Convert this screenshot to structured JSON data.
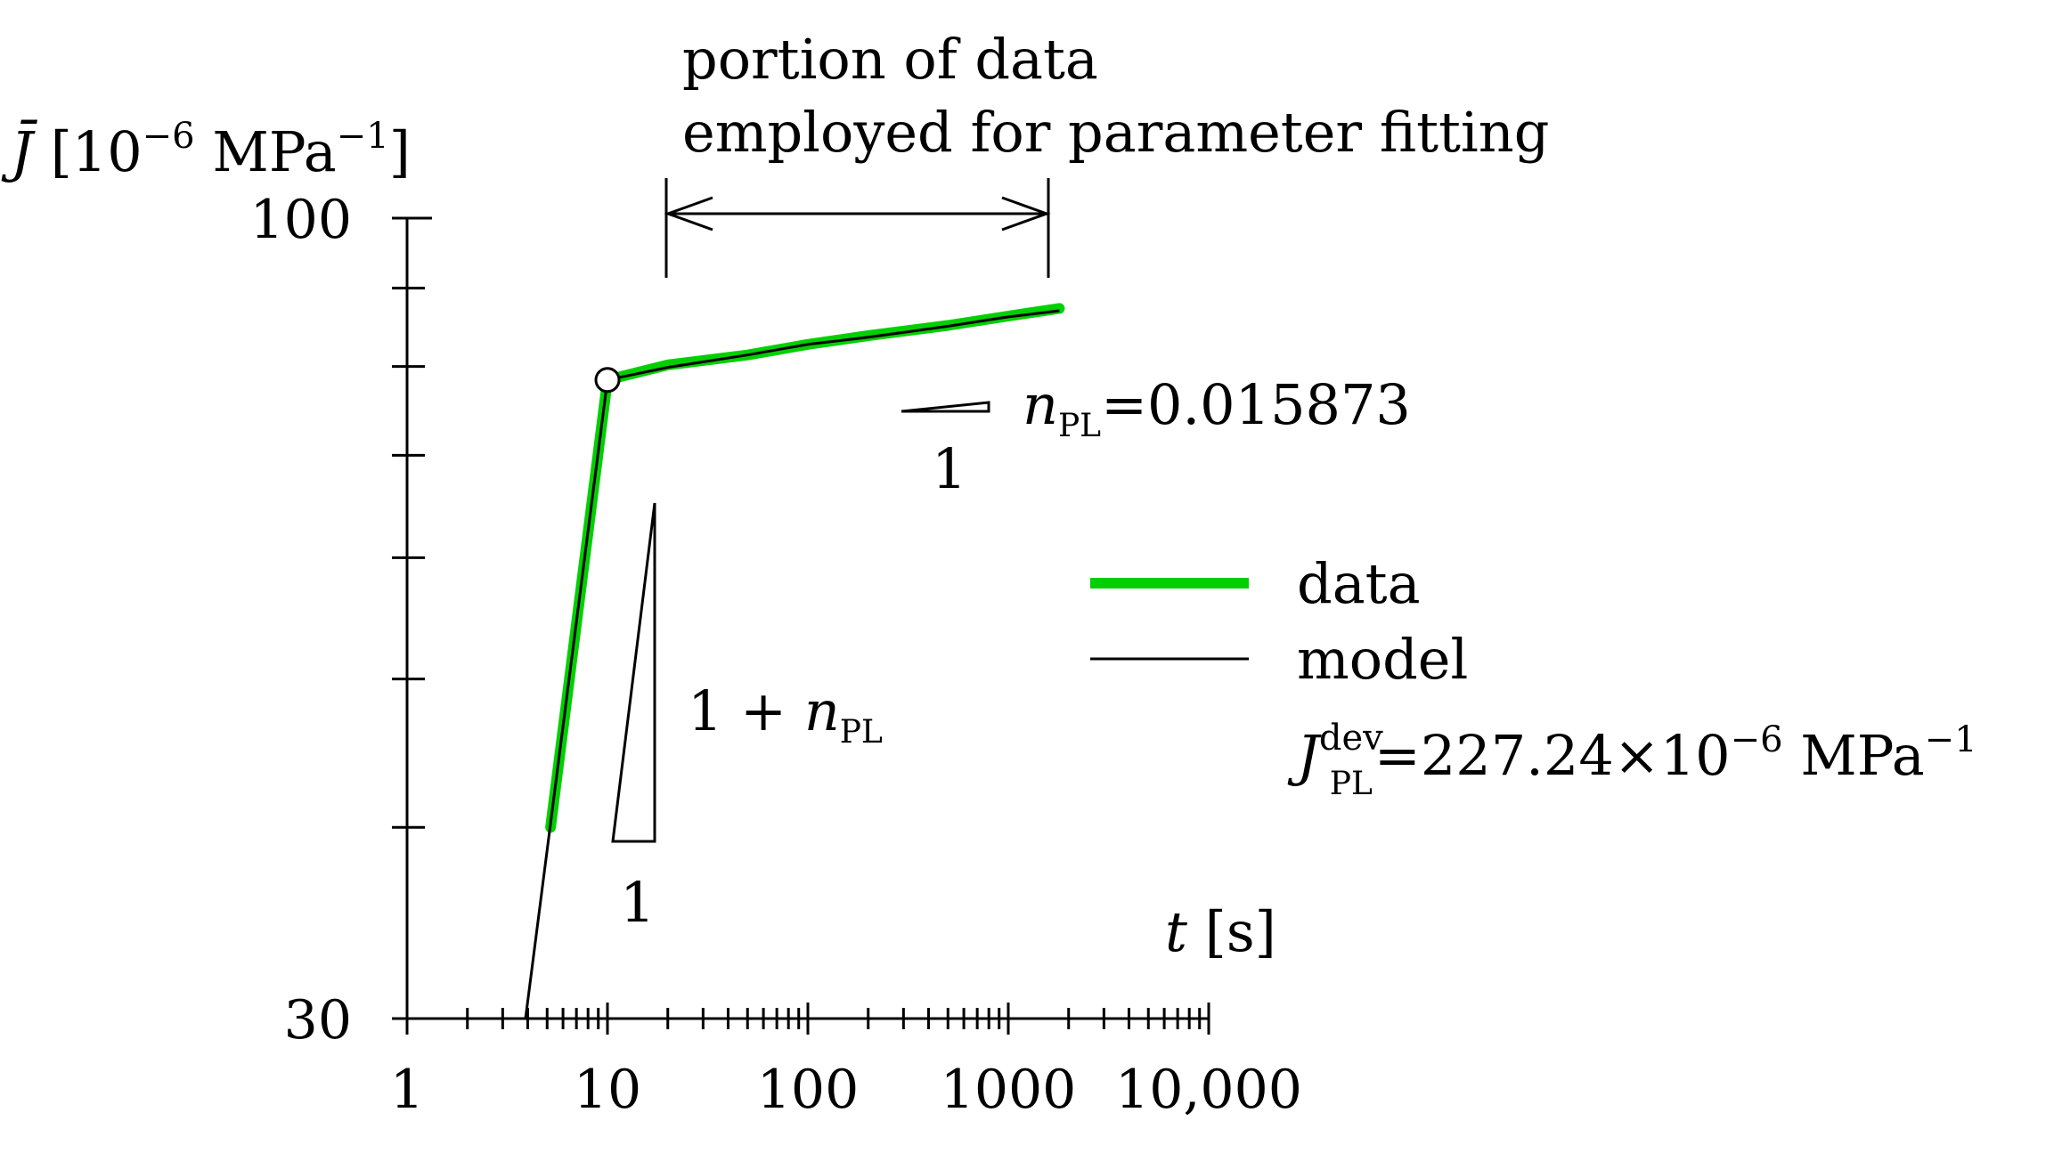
{
  "chart_data": {
    "type": "line",
    "xscale": "log",
    "yscale": "log",
    "xlim": [
      1,
      10000
    ],
    "ylim": [
      30,
      100
    ],
    "x_ticks": [
      1,
      10,
      100,
      1000,
      10000
    ],
    "x_tick_labels": [
      "1",
      "10",
      "100",
      "1000",
      "10,000"
    ],
    "y_ticks": [
      30,
      100
    ],
    "y_tick_labels": [
      "30",
      "100"
    ],
    "y_minor_ticks": [
      40,
      50,
      60,
      70,
      80,
      90
    ],
    "ylabel": {
      "symbol": "J̄",
      "rest": " [10",
      "exp": "−6",
      "unit": " MPa",
      "unit_exp": "−1",
      "close": "]"
    },
    "xlabel": {
      "symbol": "t",
      "unit": " [s]"
    },
    "series": [
      {
        "name": "data",
        "color": "#00d000",
        "x": [
          5.2,
          10,
          20,
          50,
          100,
          200,
          500,
          1000,
          1800
        ],
        "y": [
          40,
          78.4,
          80.2,
          81.4,
          82.7,
          83.8,
          85.1,
          86.3,
          87.3
        ]
      },
      {
        "name": "model",
        "color": "#000000",
        "x": [
          3.9,
          10,
          20,
          50,
          100,
          200,
          500,
          1000,
          1800
        ],
        "y": [
          30,
          78.4,
          79.9,
          81.4,
          82.7,
          83.6,
          85.0,
          86.2,
          87.0
        ]
      }
    ],
    "breakpoint": {
      "x": 10,
      "y": 78.4
    },
    "fit_range": {
      "from": 20,
      "to": 1800
    },
    "annotations": {
      "fit_line1": "portion of data",
      "fit_line2": "employed for parameter fitting",
      "slope_small_base": "1",
      "n_symbol": "n",
      "n_sub": "PL",
      "n_value": "=0.015873",
      "slope_large_base": "1",
      "slope_large_num": "1 + ",
      "jpl_symbol": "J",
      "jpl_sup": "dev",
      "jpl_sub": "PL",
      "jpl_value": "=227.24×10",
      "jpl_exp": "−6",
      "jpl_unit": " MPa",
      "jpl_unit_exp": "−1"
    },
    "legend": {
      "position": "right",
      "entries": [
        "data",
        "model"
      ]
    }
  }
}
